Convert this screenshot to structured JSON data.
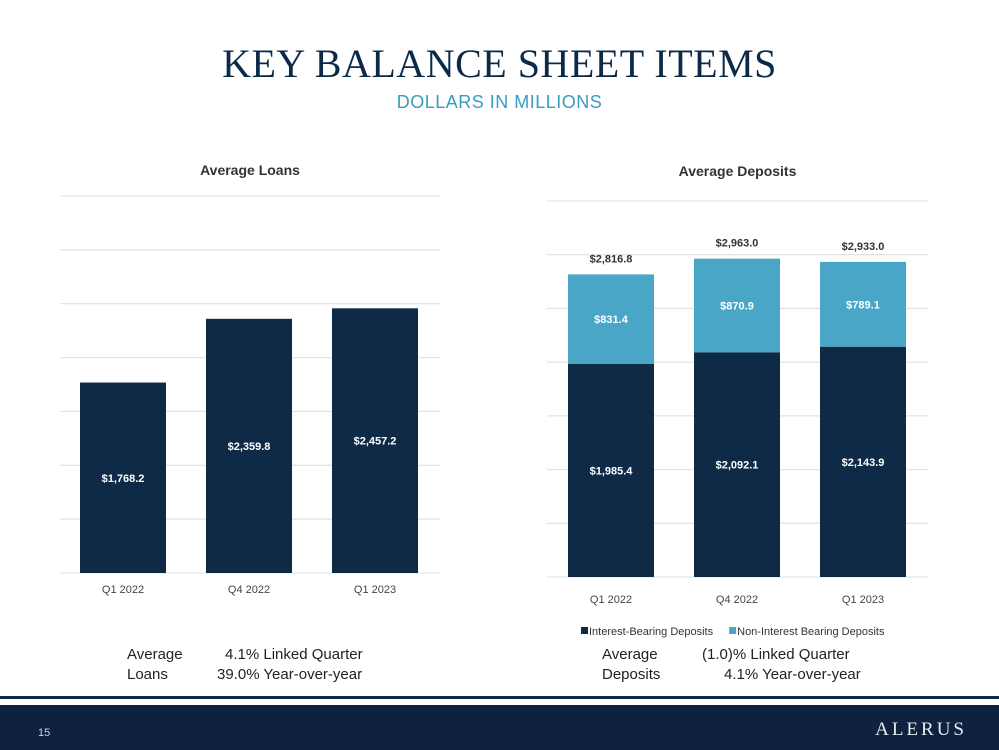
{
  "header": {
    "title": "KEY BALANCE SHEET ITEMS",
    "subtitle": "DOLLARS IN MILLIONS"
  },
  "chart_data": [
    {
      "type": "bar",
      "title": "Average Loans",
      "categories": [
        "Q1 2022",
        "Q4 2022",
        "Q1 2023"
      ],
      "values": [
        1768.2,
        2359.8,
        2457.2
      ],
      "value_labels": [
        "$1,768.2",
        "$2,359.8",
        "$2,457.2"
      ],
      "ylim": [
        0,
        3500
      ],
      "gridlines": [
        0,
        500,
        1000,
        1500,
        2000,
        2500,
        3000,
        3500
      ],
      "grid": true,
      "colors": [
        "#0e2a47"
      ]
    },
    {
      "type": "bar",
      "stacked": true,
      "title": "Average Deposits",
      "categories": [
        "Q1 2022",
        "Q4 2022",
        "Q1 2023"
      ],
      "series": [
        {
          "name": "Interest-Bearing Deposits",
          "values": [
            1985.4,
            2092.1,
            2143.9
          ],
          "value_labels": [
            "$1,985.4",
            "$2,092.1",
            "$2,143.9"
          ],
          "color": "#0e2a47"
        },
        {
          "name": "Non-Interest Bearing Deposits",
          "values": [
            831.4,
            870.9,
            789.1
          ],
          "value_labels": [
            "$831.4",
            "$870.9",
            "$789.1"
          ],
          "color": "#4aa6c7"
        }
      ],
      "totals": [
        2816.8,
        2963.0,
        2933.0
      ],
      "total_labels": [
        "$2,816.8",
        "$2,963.0",
        "$2,933.0"
      ],
      "ylim": [
        0,
        3500
      ],
      "gridlines": [
        0,
        500,
        1000,
        1500,
        2000,
        2500,
        3000,
        3500
      ],
      "grid": true,
      "legend": "bottom"
    }
  ],
  "loans_stats": {
    "label_line1": "Average",
    "label_line2": "Loans",
    "value_line1": "4.1% Linked Quarter",
    "value_line2": "39.0% Year-over-year"
  },
  "deposits_stats": {
    "label_line1": "Average",
    "label_line2": "Deposits",
    "value_line1": "(1.0)% Linked Quarter",
    "value_line2": "4.1% Year-over-year"
  },
  "footer": {
    "page_number": "15",
    "brand": "ALERUS"
  }
}
